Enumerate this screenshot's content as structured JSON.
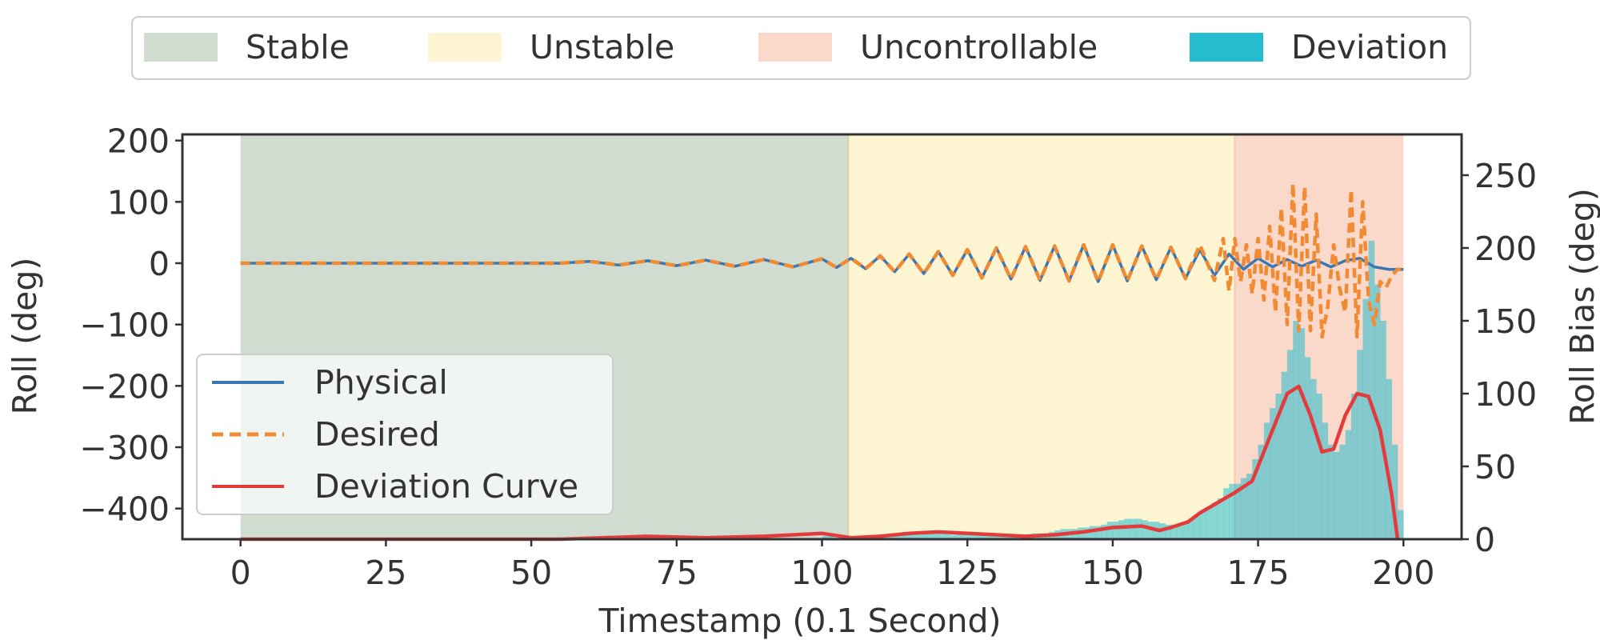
{
  "chart_data": {
    "type": "line",
    "xlabel": "Timestamp (0.1 Second)",
    "ylabel_left": "Roll (deg)",
    "ylabel_right": "Roll Bias (deg)",
    "xlim": [
      -10,
      210
    ],
    "ylim_left": [
      -450,
      210
    ],
    "ylim_right": [
      0,
      278
    ],
    "xticks": [
      0,
      25,
      50,
      75,
      100,
      125,
      150,
      175,
      200
    ],
    "yticks_left": [
      200,
      100,
      0,
      -100,
      -200,
      -300,
      -400
    ],
    "yticks_right": [
      0,
      50,
      100,
      150,
      200,
      250
    ],
    "grid": false,
    "regions": [
      {
        "name": "Stable",
        "x0": 0,
        "x1": 104.5,
        "color": "#cfdccf"
      },
      {
        "name": "Unstable",
        "x0": 104.5,
        "x1": 171,
        "color": "#fdf5d2"
      },
      {
        "name": "Uncontrollable",
        "x0": 171,
        "x1": 200,
        "color": "#fad9cb"
      }
    ],
    "top_legend": [
      {
        "label": "Stable",
        "color": "#cfdccf"
      },
      {
        "label": "Unstable",
        "color": "#fdf5d2"
      },
      {
        "label": "Uncontrollable",
        "color": "#fad9cb"
      },
      {
        "label": "Deviation",
        "color": "#26bcd0"
      }
    ],
    "line_legend": [
      {
        "label": "Physical",
        "color": "#3a77b5",
        "style": "solid"
      },
      {
        "label": "Desired",
        "color": "#f08a33",
        "style": "dashed"
      },
      {
        "label": "Deviation Curve",
        "color": "#e33b3b",
        "style": "solid"
      }
    ],
    "series": [
      {
        "name": "Physical",
        "axis": "left",
        "x": [
          0,
          20,
          40,
          55,
          60,
          65,
          70,
          75,
          80,
          85,
          90,
          95,
          100,
          102.5,
          105,
          107.5,
          110,
          112.5,
          115,
          117.5,
          120,
          122.5,
          125,
          127.5,
          130,
          132.5,
          135,
          137.5,
          140,
          142.5,
          145,
          147.5,
          150,
          152.5,
          155,
          157.5,
          160,
          162.5,
          165,
          167.5,
          170,
          172.5,
          175,
          177.5,
          180,
          182.5,
          185,
          187.5,
          190,
          192.5,
          195,
          197.5,
          200
        ],
        "values": [
          0,
          0,
          0,
          0,
          3,
          -3,
          4,
          -4,
          5,
          -5,
          6,
          -6,
          7,
          -7,
          8,
          -9,
          12,
          -14,
          15,
          -17,
          19,
          -20,
          22,
          -24,
          25,
          -26,
          27,
          -28,
          28,
          -29,
          30,
          -30,
          30,
          -29,
          28,
          -27,
          26,
          -25,
          22,
          -20,
          15,
          -10,
          8,
          -6,
          6,
          -5,
          5,
          -6,
          4,
          8,
          -6,
          -10,
          -10
        ]
      },
      {
        "name": "Desired",
        "axis": "left",
        "x": [
          0,
          20,
          40,
          55,
          60,
          65,
          70,
          75,
          80,
          85,
          90,
          95,
          100,
          102.5,
          105,
          107.5,
          110,
          112.5,
          115,
          117.5,
          120,
          122.5,
          125,
          127.5,
          130,
          132.5,
          135,
          137.5,
          140,
          142.5,
          145,
          147.5,
          150,
          152.5,
          155,
          157.5,
          160,
          162.5,
          165,
          167.5,
          169,
          170,
          171,
          172,
          173,
          174,
          175,
          176,
          177,
          178,
          179,
          180,
          181,
          182,
          183,
          184,
          185,
          186,
          187,
          188,
          189,
          190,
          191,
          192,
          193,
          194,
          195,
          196,
          197,
          198,
          199,
          200
        ],
        "values": [
          0,
          0,
          0,
          0,
          3,
          -3,
          4,
          -4,
          5,
          -5,
          6,
          -6,
          7,
          -7,
          8,
          -9,
          12,
          -14,
          15,
          -17,
          19,
          -20,
          22,
          -24,
          25,
          -26,
          27,
          -28,
          28,
          -29,
          30,
          -30,
          30,
          -29,
          28,
          -27,
          26,
          -25,
          30,
          -28,
          40,
          -45,
          40,
          -30,
          30,
          -50,
          40,
          -60,
          60,
          -80,
          90,
          -100,
          130,
          -110,
          125,
          -110,
          80,
          -120,
          -70,
          30,
          -40,
          -80,
          120,
          -120,
          100,
          -60,
          -100,
          -30,
          -40,
          -20,
          -10,
          -10
        ]
      },
      {
        "name": "Deviation Curve",
        "axis": "right",
        "x": [
          0,
          20,
          40,
          55,
          70,
          80,
          90,
          100,
          105,
          110,
          115,
          120,
          130,
          135,
          140,
          145,
          150,
          155,
          158,
          160,
          163,
          165,
          168,
          171,
          174,
          177,
          180,
          182,
          184,
          186,
          188,
          190,
          192,
          194,
          196,
          198,
          199
        ],
        "values": [
          0,
          0,
          0,
          0,
          2,
          1,
          2,
          4,
          1,
          2,
          4,
          5,
          3,
          2,
          3,
          5,
          8,
          9,
          6,
          8,
          12,
          18,
          25,
          32,
          40,
          70,
          100,
          105,
          85,
          60,
          62,
          85,
          100,
          98,
          75,
          30,
          0
        ]
      }
    ],
    "deviation_bars": {
      "x_start": 100,
      "width": 1,
      "values": [
        2,
        2,
        1,
        2,
        1,
        2,
        2,
        2,
        1,
        2,
        3,
        3,
        4,
        4,
        4,
        4,
        3,
        4,
        5,
        5,
        4,
        4,
        3,
        4,
        3,
        3,
        3,
        3,
        3,
        3,
        2,
        2,
        3,
        3,
        3,
        3,
        4,
        4,
        4,
        5,
        6,
        7,
        7,
        7,
        8,
        8,
        9,
        9,
        10,
        12,
        12,
        13,
        14,
        14,
        14,
        13,
        12,
        12,
        11,
        10,
        10,
        10,
        12,
        14,
        16,
        20,
        22,
        25,
        28,
        35,
        38,
        38,
        42,
        45,
        55,
        65,
        80,
        90,
        100,
        115,
        130,
        150,
        145,
        125,
        110,
        100,
        80,
        65,
        60,
        65,
        75,
        100,
        130,
        165,
        205,
        175,
        150,
        110,
        65,
        20
      ]
    }
  }
}
